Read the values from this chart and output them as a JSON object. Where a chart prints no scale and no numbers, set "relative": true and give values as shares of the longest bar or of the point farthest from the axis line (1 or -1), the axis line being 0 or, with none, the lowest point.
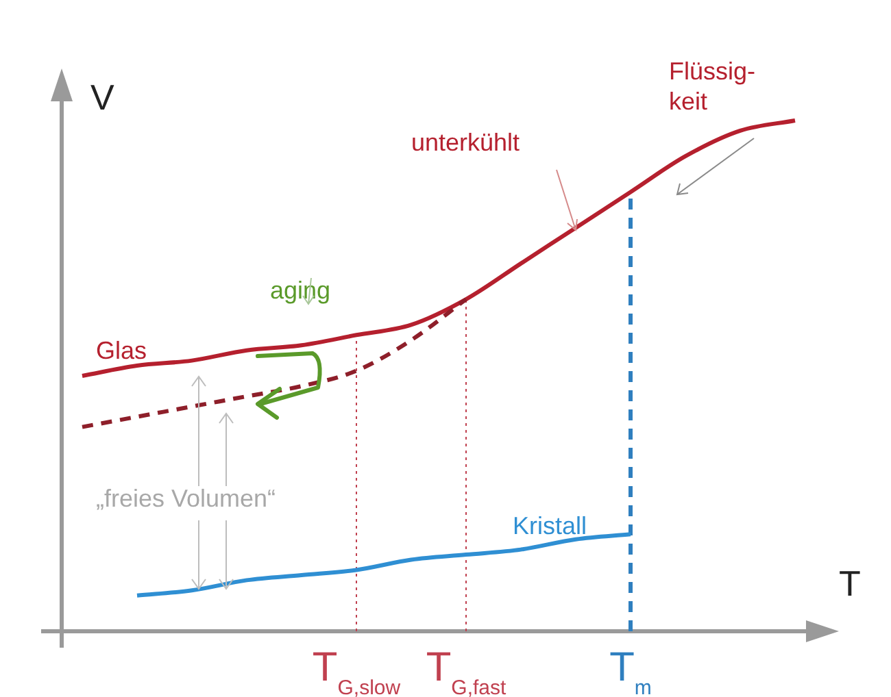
{
  "chart_data": {
    "type": "line",
    "relative": true,
    "xlabel": "T",
    "ylabel": "V",
    "legend": false,
    "marker": "none",
    "categories": [
      null,
      null,
      null,
      null,
      null,
      "T$_{G,slow}$",
      null,
      "T$_{G,fast}$",
      null,
      null,
      "T$_{m}$",
      null,
      null,
      null
    ],
    "series": [
      {
        "color": "#8e1f2a",
        "line_style": "dashed",
        "values": [
          0.4,
          0.42,
          0.44,
          0.46,
          0.48,
          0.51,
          0.57,
          0.65,
          null,
          null,
          null,
          null,
          null,
          null
        ]
      },
      {
        "color": "#b5202e",
        "line_style": "solid",
        "values": [
          0.5,
          0.52,
          0.53,
          0.55,
          0.56,
          0.58,
          0.6,
          0.65,
          0.72,
          0.79,
          0.86,
          0.93,
          0.98,
          1
        ]
      },
      {
        "color": "#2f8fd3",
        "line_style": "solid",
        "values": [
          null,
          0.07,
          0.08,
          0.1,
          0.11,
          0.12,
          0.14,
          0.15,
          0.16,
          0.18,
          0.19,
          null,
          null,
          null
        ]
      }
    ],
    "ref_lines": [
      {
        "axis": "x",
        "value": "T$_{G,slow}$",
        "color": "#c0404f",
        "line_style": "dotted"
      },
      {
        "axis": "x",
        "value": "T$_{G,fast}$",
        "color": "#c0404f",
        "line_style": "dotted"
      },
      {
        "axis": "x",
        "value": "T$_{m}$",
        "color": "#2f7fbf",
        "line_style": "dashed"
      }
    ],
    "annotations": [
      "Glas",
      "unterkühlt",
      "Flüssig-\nkeit",
      "aging",
      "„freies Volumen“",
      "Kristall"
    ]
  }
}
